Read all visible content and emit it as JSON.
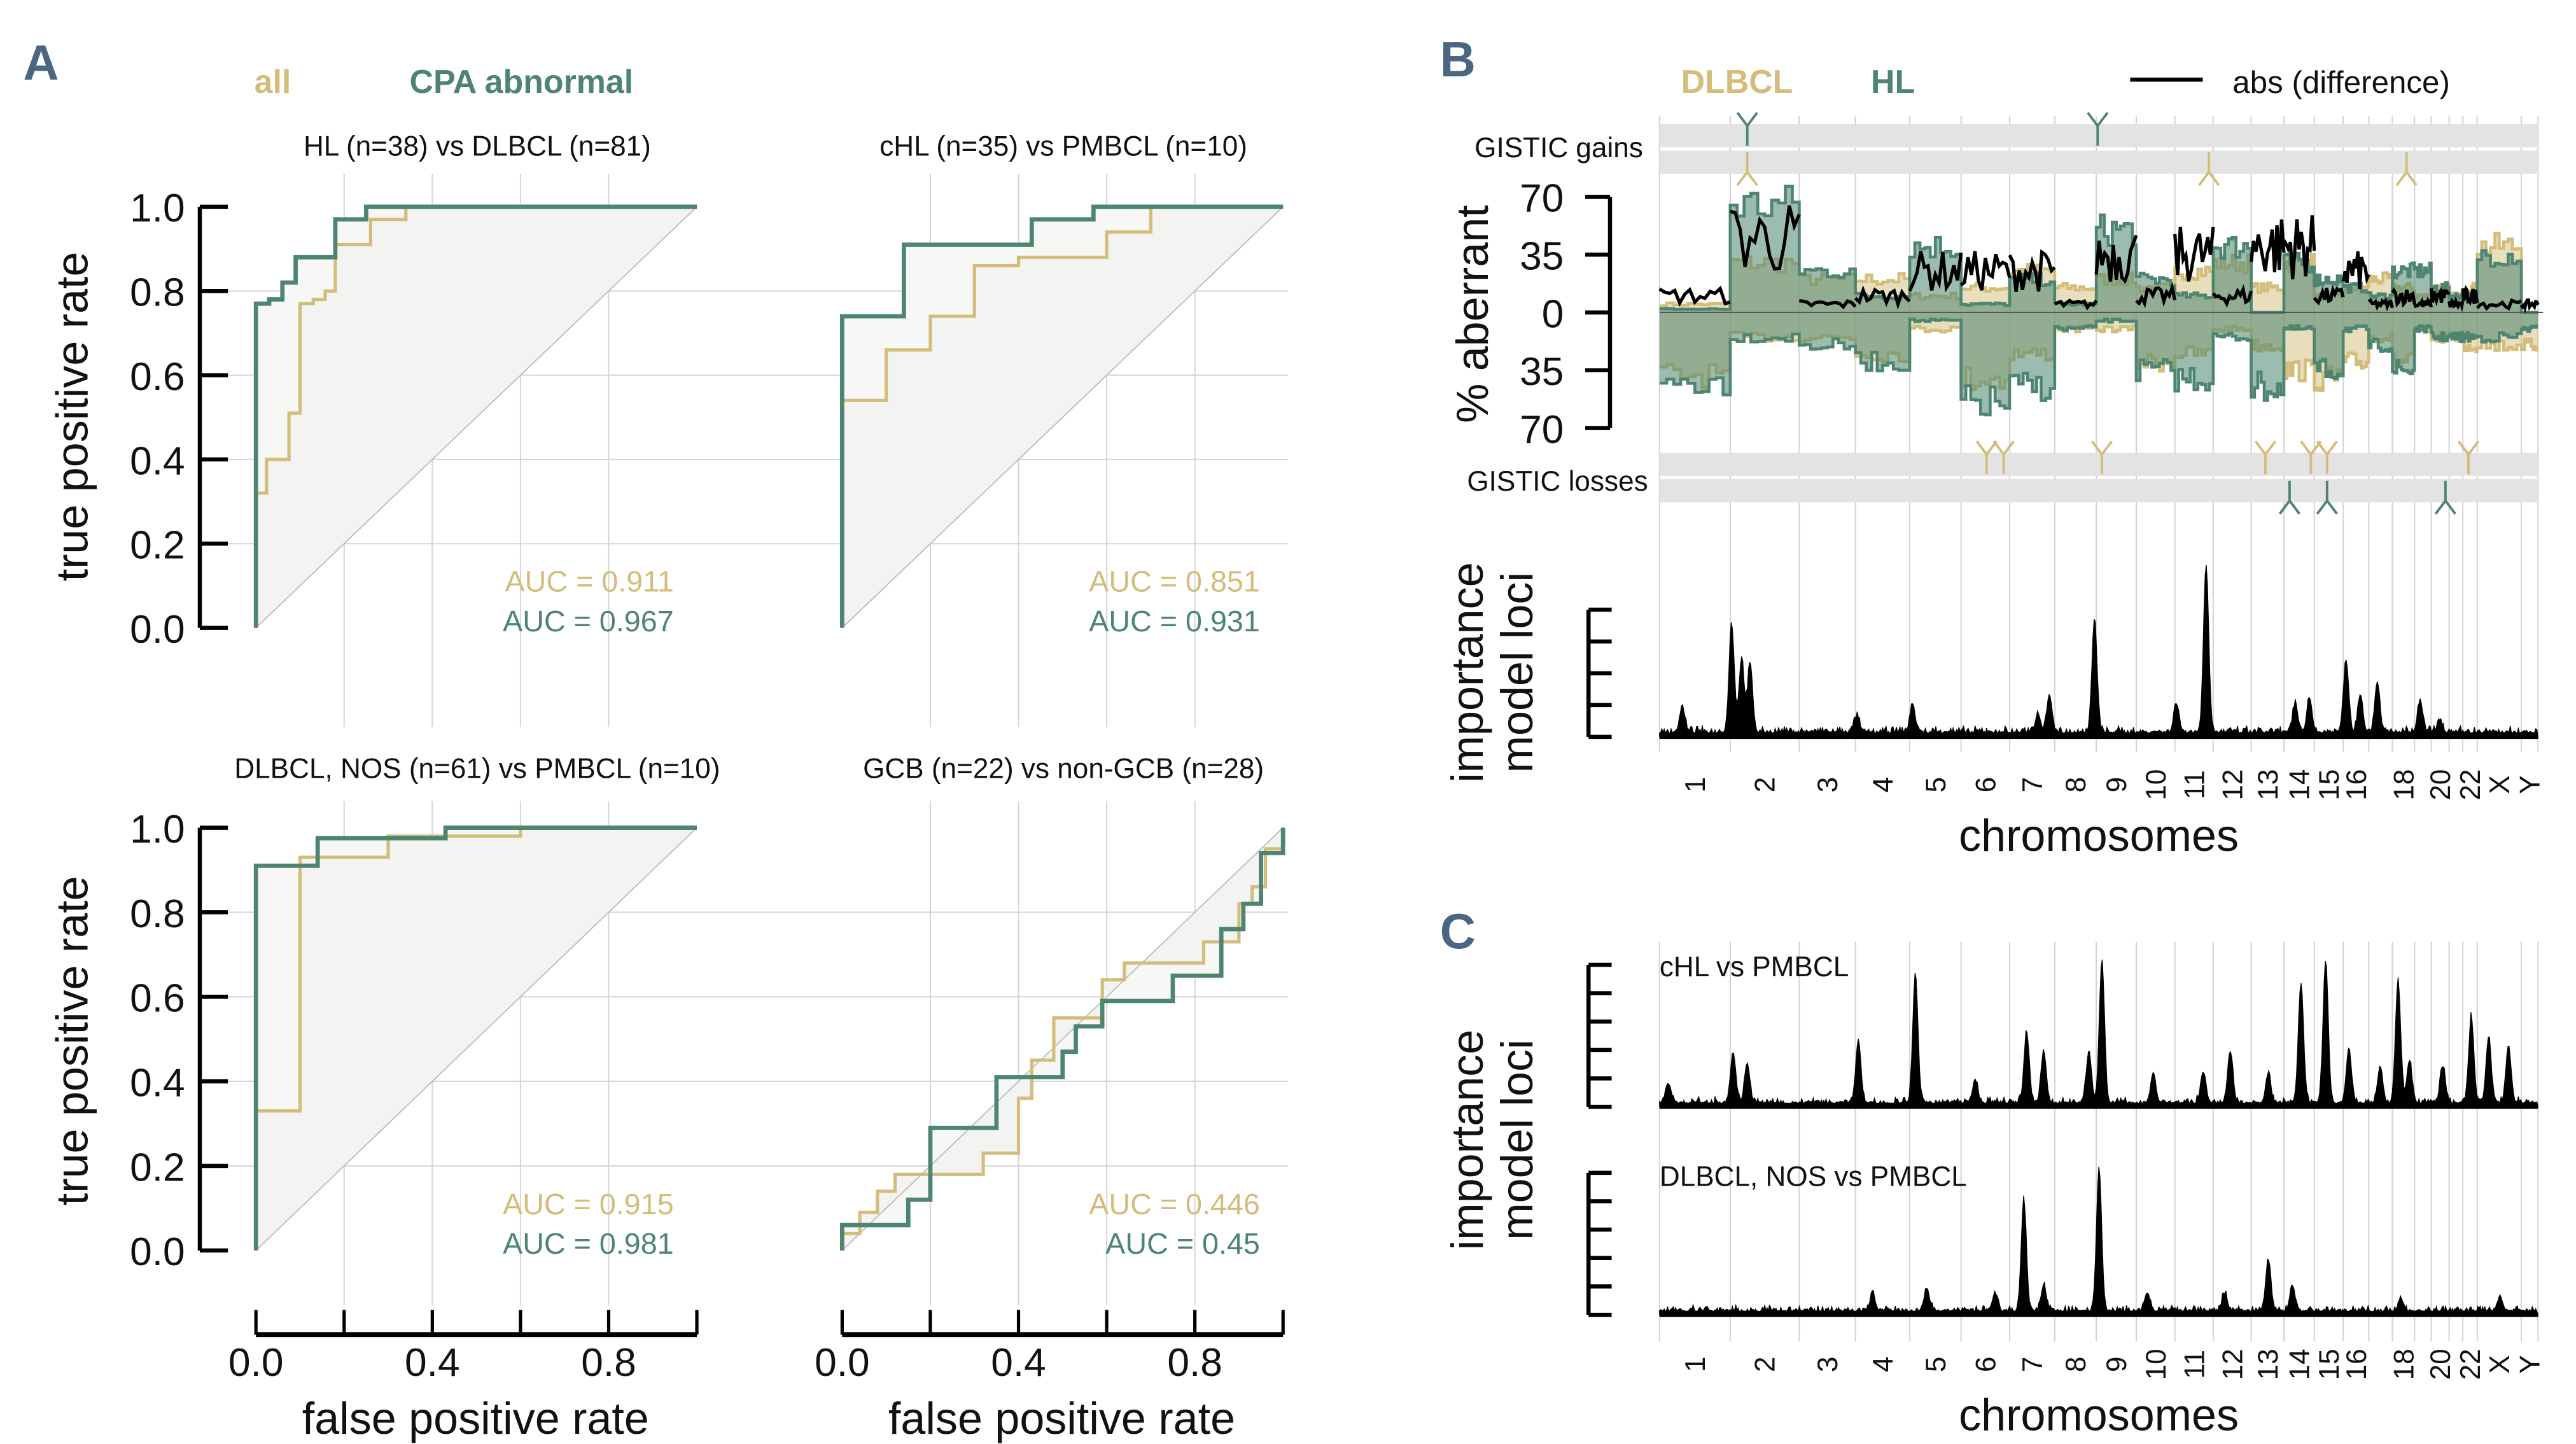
{
  "panel_labels": {
    "a": "A",
    "b": "B",
    "c": "C"
  },
  "colors": {
    "all": "#d4bd7a",
    "cpa_abnormal": "#4d8570",
    "dlbcl": "#d4bd7a",
    "hl": "#4d8570",
    "difference": "#000000",
    "panel_label": "#4a6680"
  },
  "panel_a": {
    "legend": {
      "all": "all",
      "cpa": "CPA abnormal"
    },
    "ylabel": "true positive rate",
    "xlabel": "false positive rate",
    "yticks": [
      "1.0",
      "0.8",
      "0.6",
      "0.4",
      "0.2",
      "0.0"
    ],
    "xticks": [
      "0.0",
      "0.4",
      "0.8"
    ]
  },
  "chart_data": [
    {
      "type": "line",
      "title": "HL (n=38) vs DLBCL (n=81)",
      "xlim": [
        0,
        1
      ],
      "ylim": [
        0,
        1
      ],
      "grid": true,
      "series": [
        {
          "name": "all",
          "auc_label": "AUC = 0.911",
          "points": [
            [
              0,
              0
            ],
            [
              0,
              0.32
            ],
            [
              0.024,
              0.32
            ],
            [
              0.024,
              0.4
            ],
            [
              0.075,
              0.4
            ],
            [
              0.075,
              0.51
            ],
            [
              0.1,
              0.51
            ],
            [
              0.1,
              0.77
            ],
            [
              0.13,
              0.77
            ],
            [
              0.13,
              0.78
            ],
            [
              0.157,
              0.78
            ],
            [
              0.157,
              0.8
            ],
            [
              0.18,
              0.8
            ],
            [
              0.18,
              0.91
            ],
            [
              0.26,
              0.91
            ],
            [
              0.26,
              0.97
            ],
            [
              0.34,
              0.97
            ],
            [
              0.34,
              1.0
            ],
            [
              1,
              1
            ]
          ]
        },
        {
          "name": "CPA abnormal",
          "auc_label": "AUC = 0.967",
          "points": [
            [
              0,
              0
            ],
            [
              0,
              0.77
            ],
            [
              0.03,
              0.77
            ],
            [
              0.03,
              0.78
            ],
            [
              0.06,
              0.78
            ],
            [
              0.06,
              0.82
            ],
            [
              0.09,
              0.82
            ],
            [
              0.09,
              0.88
            ],
            [
              0.18,
              0.88
            ],
            [
              0.18,
              0.97
            ],
            [
              0.25,
              0.97
            ],
            [
              0.25,
              1.0
            ],
            [
              1,
              1
            ]
          ]
        }
      ]
    },
    {
      "type": "line",
      "title": "cHL (n=35) vs PMBCL (n=10)",
      "xlim": [
        0,
        1
      ],
      "ylim": [
        0,
        1
      ],
      "grid": true,
      "series": [
        {
          "name": "all",
          "auc_label": "AUC = 0.851",
          "points": [
            [
              0,
              0
            ],
            [
              0,
              0.54
            ],
            [
              0.1,
              0.54
            ],
            [
              0.1,
              0.66
            ],
            [
              0.2,
              0.66
            ],
            [
              0.2,
              0.74
            ],
            [
              0.3,
              0.74
            ],
            [
              0.3,
              0.86
            ],
            [
              0.4,
              0.86
            ],
            [
              0.4,
              0.88
            ],
            [
              0.6,
              0.88
            ],
            [
              0.6,
              0.94
            ],
            [
              0.7,
              0.94
            ],
            [
              0.7,
              1.0
            ],
            [
              1,
              1
            ]
          ]
        },
        {
          "name": "CPA abnormal",
          "auc_label": "AUC = 0.931",
          "points": [
            [
              0,
              0
            ],
            [
              0,
              0.74
            ],
            [
              0.14,
              0.74
            ],
            [
              0.14,
              0.91
            ],
            [
              0.43,
              0.91
            ],
            [
              0.43,
              0.97
            ],
            [
              0.57,
              0.97
            ],
            [
              0.57,
              1.0
            ],
            [
              1,
              1
            ]
          ]
        }
      ]
    },
    {
      "type": "line",
      "title": "DLBCL, NOS (n=61) vs PMBCL (n=10)",
      "xlim": [
        0,
        1
      ],
      "ylim": [
        0,
        1
      ],
      "grid": true,
      "series": [
        {
          "name": "all",
          "auc_label": "AUC = 0.915",
          "points": [
            [
              0,
              0
            ],
            [
              0,
              0.33
            ],
            [
              0.1,
              0.33
            ],
            [
              0.1,
              0.93
            ],
            [
              0.3,
              0.93
            ],
            [
              0.3,
              0.98
            ],
            [
              0.6,
              0.98
            ],
            [
              0.6,
              1.0
            ],
            [
              1,
              1
            ]
          ]
        },
        {
          "name": "CPA abnormal",
          "auc_label": "AUC = 0.981",
          "points": [
            [
              0,
              0
            ],
            [
              0,
              0.91
            ],
            [
              0.14,
              0.91
            ],
            [
              0.14,
              0.975
            ],
            [
              0.43,
              0.975
            ],
            [
              0.43,
              1.0
            ],
            [
              1,
              1
            ]
          ]
        }
      ]
    },
    {
      "type": "line",
      "title": "GCB (n=22) vs non-GCB (n=28)",
      "xlim": [
        0,
        1
      ],
      "ylim": [
        0,
        1
      ],
      "grid": true,
      "series": [
        {
          "name": "all",
          "auc_label": "AUC = 0.446",
          "points": [
            [
              0,
              0
            ],
            [
              0,
              0.04
            ],
            [
              0.04,
              0.04
            ],
            [
              0.04,
              0.09
            ],
            [
              0.08,
              0.09
            ],
            [
              0.08,
              0.14
            ],
            [
              0.12,
              0.14
            ],
            [
              0.12,
              0.18
            ],
            [
              0.32,
              0.18
            ],
            [
              0.32,
              0.23
            ],
            [
              0.4,
              0.23
            ],
            [
              0.4,
              0.36
            ],
            [
              0.43,
              0.36
            ],
            [
              0.43,
              0.45
            ],
            [
              0.48,
              0.45
            ],
            [
              0.48,
              0.55
            ],
            [
              0.59,
              0.55
            ],
            [
              0.59,
              0.64
            ],
            [
              0.64,
              0.64
            ],
            [
              0.64,
              0.68
            ],
            [
              0.82,
              0.68
            ],
            [
              0.82,
              0.73
            ],
            [
              0.9,
              0.73
            ],
            [
              0.9,
              0.82
            ],
            [
              0.93,
              0.82
            ],
            [
              0.93,
              0.86
            ],
            [
              0.96,
              0.86
            ],
            [
              0.96,
              0.95
            ],
            [
              1,
              0.95
            ],
            [
              1,
              1
            ]
          ]
        },
        {
          "name": "CPA abnormal",
          "auc_label": "AUC = 0.45",
          "points": [
            [
              0,
              0
            ],
            [
              0,
              0.06
            ],
            [
              0.15,
              0.06
            ],
            [
              0.15,
              0.12
            ],
            [
              0.2,
              0.12
            ],
            [
              0.2,
              0.29
            ],
            [
              0.35,
              0.29
            ],
            [
              0.35,
              0.41
            ],
            [
              0.5,
              0.41
            ],
            [
              0.5,
              0.47
            ],
            [
              0.53,
              0.47
            ],
            [
              0.53,
              0.53
            ],
            [
              0.59,
              0.53
            ],
            [
              0.59,
              0.59
            ],
            [
              0.75,
              0.59
            ],
            [
              0.75,
              0.65
            ],
            [
              0.86,
              0.65
            ],
            [
              0.86,
              0.76
            ],
            [
              0.91,
              0.76
            ],
            [
              0.91,
              0.82
            ],
            [
              0.95,
              0.82
            ],
            [
              0.95,
              0.94
            ],
            [
              1,
              0.94
            ],
            [
              1,
              1
            ]
          ]
        }
      ]
    },
    {
      "type": "area",
      "legend": {
        "dlbcl": "DLBCL",
        "hl": "HL",
        "difference": "abs (difference)"
      },
      "ylabel": "% aberrant",
      "yticks": [
        "70",
        "35",
        "0",
        "35",
        "70"
      ],
      "ylim": [
        -70,
        70
      ],
      "gistic_gains_label": "GISTIC gains",
      "gistic_losses_label": "GISTIC losses",
      "gistic": {
        "gains_hl": [
          [
            "2",
            60
          ],
          [
            "9",
            5
          ]
        ],
        "gains_dlbcl": [
          [
            "2",
            60
          ],
          [
            "11",
            120
          ],
          [
            "18",
            50
          ]
        ],
        "losses_dlbcl": [
          [
            "6",
            90
          ],
          [
            "6",
            150
          ],
          [
            "9",
            20
          ],
          [
            "13",
            50
          ],
          [
            "14",
            95
          ],
          [
            "15",
            45
          ],
          [
            "22",
            20
          ]
        ],
        "losses_hl": [
          [
            "14",
            20
          ],
          [
            "15",
            45
          ],
          [
            "20",
            50
          ]
        ]
      },
      "columns": [
        "chromosome",
        "dlbcl_gain",
        "hl_gain",
        "dlbcl_loss",
        "hl_loss",
        "abs_difference"
      ],
      "rows": [
        [
          "1",
          5,
          2,
          -38,
          -42,
          10
        ],
        [
          "2",
          30,
          65,
          -15,
          -15,
          45
        ],
        [
          "3",
          20,
          25,
          -15,
          -20,
          5
        ],
        [
          "4",
          20,
          10,
          -25,
          -30,
          10
        ],
        [
          "5",
          10,
          40,
          -10,
          -5,
          25
        ],
        [
          "6",
          15,
          5,
          -40,
          -55,
          25
        ],
        [
          "7",
          25,
          20,
          -25,
          -45,
          25
        ],
        [
          "8",
          15,
          5,
          -10,
          -10,
          5
        ],
        [
          "9",
          20,
          50,
          -10,
          -5,
          35
        ],
        [
          "10",
          15,
          20,
          -30,
          -35,
          10
        ],
        [
          "11",
          25,
          10,
          -25,
          -40,
          35
        ],
        [
          "12",
          30,
          40,
          -10,
          -15,
          10
        ],
        [
          "13",
          15,
          0,
          -20,
          -45,
          40
        ],
        [
          "14",
          30,
          30,
          -35,
          -10,
          40
        ],
        [
          "15",
          10,
          20,
          -40,
          -35,
          10
        ],
        [
          "16",
          15,
          15,
          -30,
          -10,
          25
        ],
        [
          "17",
          20,
          10,
          -15,
          -20,
          5
        ],
        [
          "18",
          15,
          25,
          -30,
          -35,
          10
        ],
        [
          "19",
          10,
          25,
          -10,
          -10,
          5
        ],
        [
          "20",
          15,
          15,
          -15,
          -15,
          10
        ],
        [
          "21",
          10,
          10,
          -15,
          -15,
          5
        ],
        [
          "22",
          15,
          10,
          -20,
          -15,
          10
        ],
        [
          "X",
          40,
          35,
          -20,
          -15,
          5
        ],
        [
          "Y",
          0,
          0,
          -20,
          -10,
          5
        ]
      ]
    },
    {
      "type": "area",
      "panel": "B",
      "ylabel_line1": "importance",
      "ylabel_line2": "model loci",
      "xlabel": "chromosomes",
      "peaks": [
        [
          "1",
          80,
          0.8
        ],
        [
          "2",
          5,
          3.4
        ],
        [
          "2",
          40,
          2.3
        ],
        [
          "2",
          70,
          2.1
        ],
        [
          "4",
          5,
          0.5
        ],
        [
          "5",
          10,
          0.9
        ],
        [
          "7",
          100,
          0.6
        ],
        [
          "7",
          140,
          1.2
        ],
        [
          "8",
          140,
          3.5
        ],
        [
          "11",
          5,
          0.9
        ],
        [
          "11",
          110,
          5.3
        ],
        [
          "14",
          40,
          0.9
        ],
        [
          "14",
          90,
          1.1
        ],
        [
          "16",
          10,
          2.3
        ],
        [
          "16",
          60,
          1.2
        ],
        [
          "17",
          30,
          1.6
        ],
        [
          "19",
          20,
          1.0
        ],
        [
          "20",
          30,
          0.4
        ]
      ]
    },
    {
      "type": "area",
      "panel": "C",
      "title": "cHL vs PMBCL",
      "peaks": [
        [
          "1",
          30,
          0.7
        ],
        [
          "2",
          10,
          1.8
        ],
        [
          "2",
          60,
          1.4
        ],
        [
          "4",
          10,
          2.2
        ],
        [
          "5",
          20,
          4.5
        ],
        [
          "6",
          50,
          0.8
        ],
        [
          "7",
          60,
          2.5
        ],
        [
          "7",
          120,
          1.8
        ],
        [
          "8",
          120,
          1.8
        ],
        [
          "9",
          20,
          5.0
        ],
        [
          "10",
          60,
          1.0
        ],
        [
          "11",
          100,
          1.1
        ],
        [
          "12",
          60,
          1.8
        ],
        [
          "13",
          60,
          1.0
        ],
        [
          "14",
          60,
          4.2
        ],
        [
          "15",
          40,
          5.0
        ],
        [
          "16",
          20,
          1.9
        ],
        [
          "17",
          40,
          1.3
        ],
        [
          "18",
          20,
          4.3
        ],
        [
          "18",
          60,
          1.5
        ],
        [
          "20",
          40,
          1.3
        ],
        [
          "22",
          30,
          3.0
        ],
        [
          "X",
          40,
          2.3
        ],
        [
          "X",
          110,
          2.0
        ]
      ]
    },
    {
      "type": "area",
      "panel": "C",
      "title": "DLBCL, NOS vs PMBCL",
      "peaks": [
        [
          "4",
          60,
          0.6
        ],
        [
          "5",
          60,
          0.8
        ],
        [
          "6",
          120,
          0.6
        ],
        [
          "7",
          50,
          3.9
        ],
        [
          "7",
          120,
          0.9
        ],
        [
          "9",
          10,
          5.0
        ],
        [
          "10",
          40,
          0.6
        ],
        [
          "12",
          40,
          0.6
        ],
        [
          "13",
          60,
          1.8
        ],
        [
          "14",
          30,
          0.9
        ],
        [
          "18",
          30,
          0.4
        ],
        [
          "X",
          80,
          0.5
        ]
      ]
    }
  ],
  "chromosome_axis": {
    "labels": [
      "1",
      "2",
      "3",
      "4",
      "5",
      "6",
      "7",
      "8",
      "9",
      "10",
      "11",
      "12",
      "13",
      "14",
      "15",
      "16",
      "18",
      "20",
      "22",
      "X",
      "Y"
    ],
    "xlabel": "chromosomes",
    "importance_ylabel_line1": "importance",
    "importance_ylabel_line2": "model loci"
  }
}
